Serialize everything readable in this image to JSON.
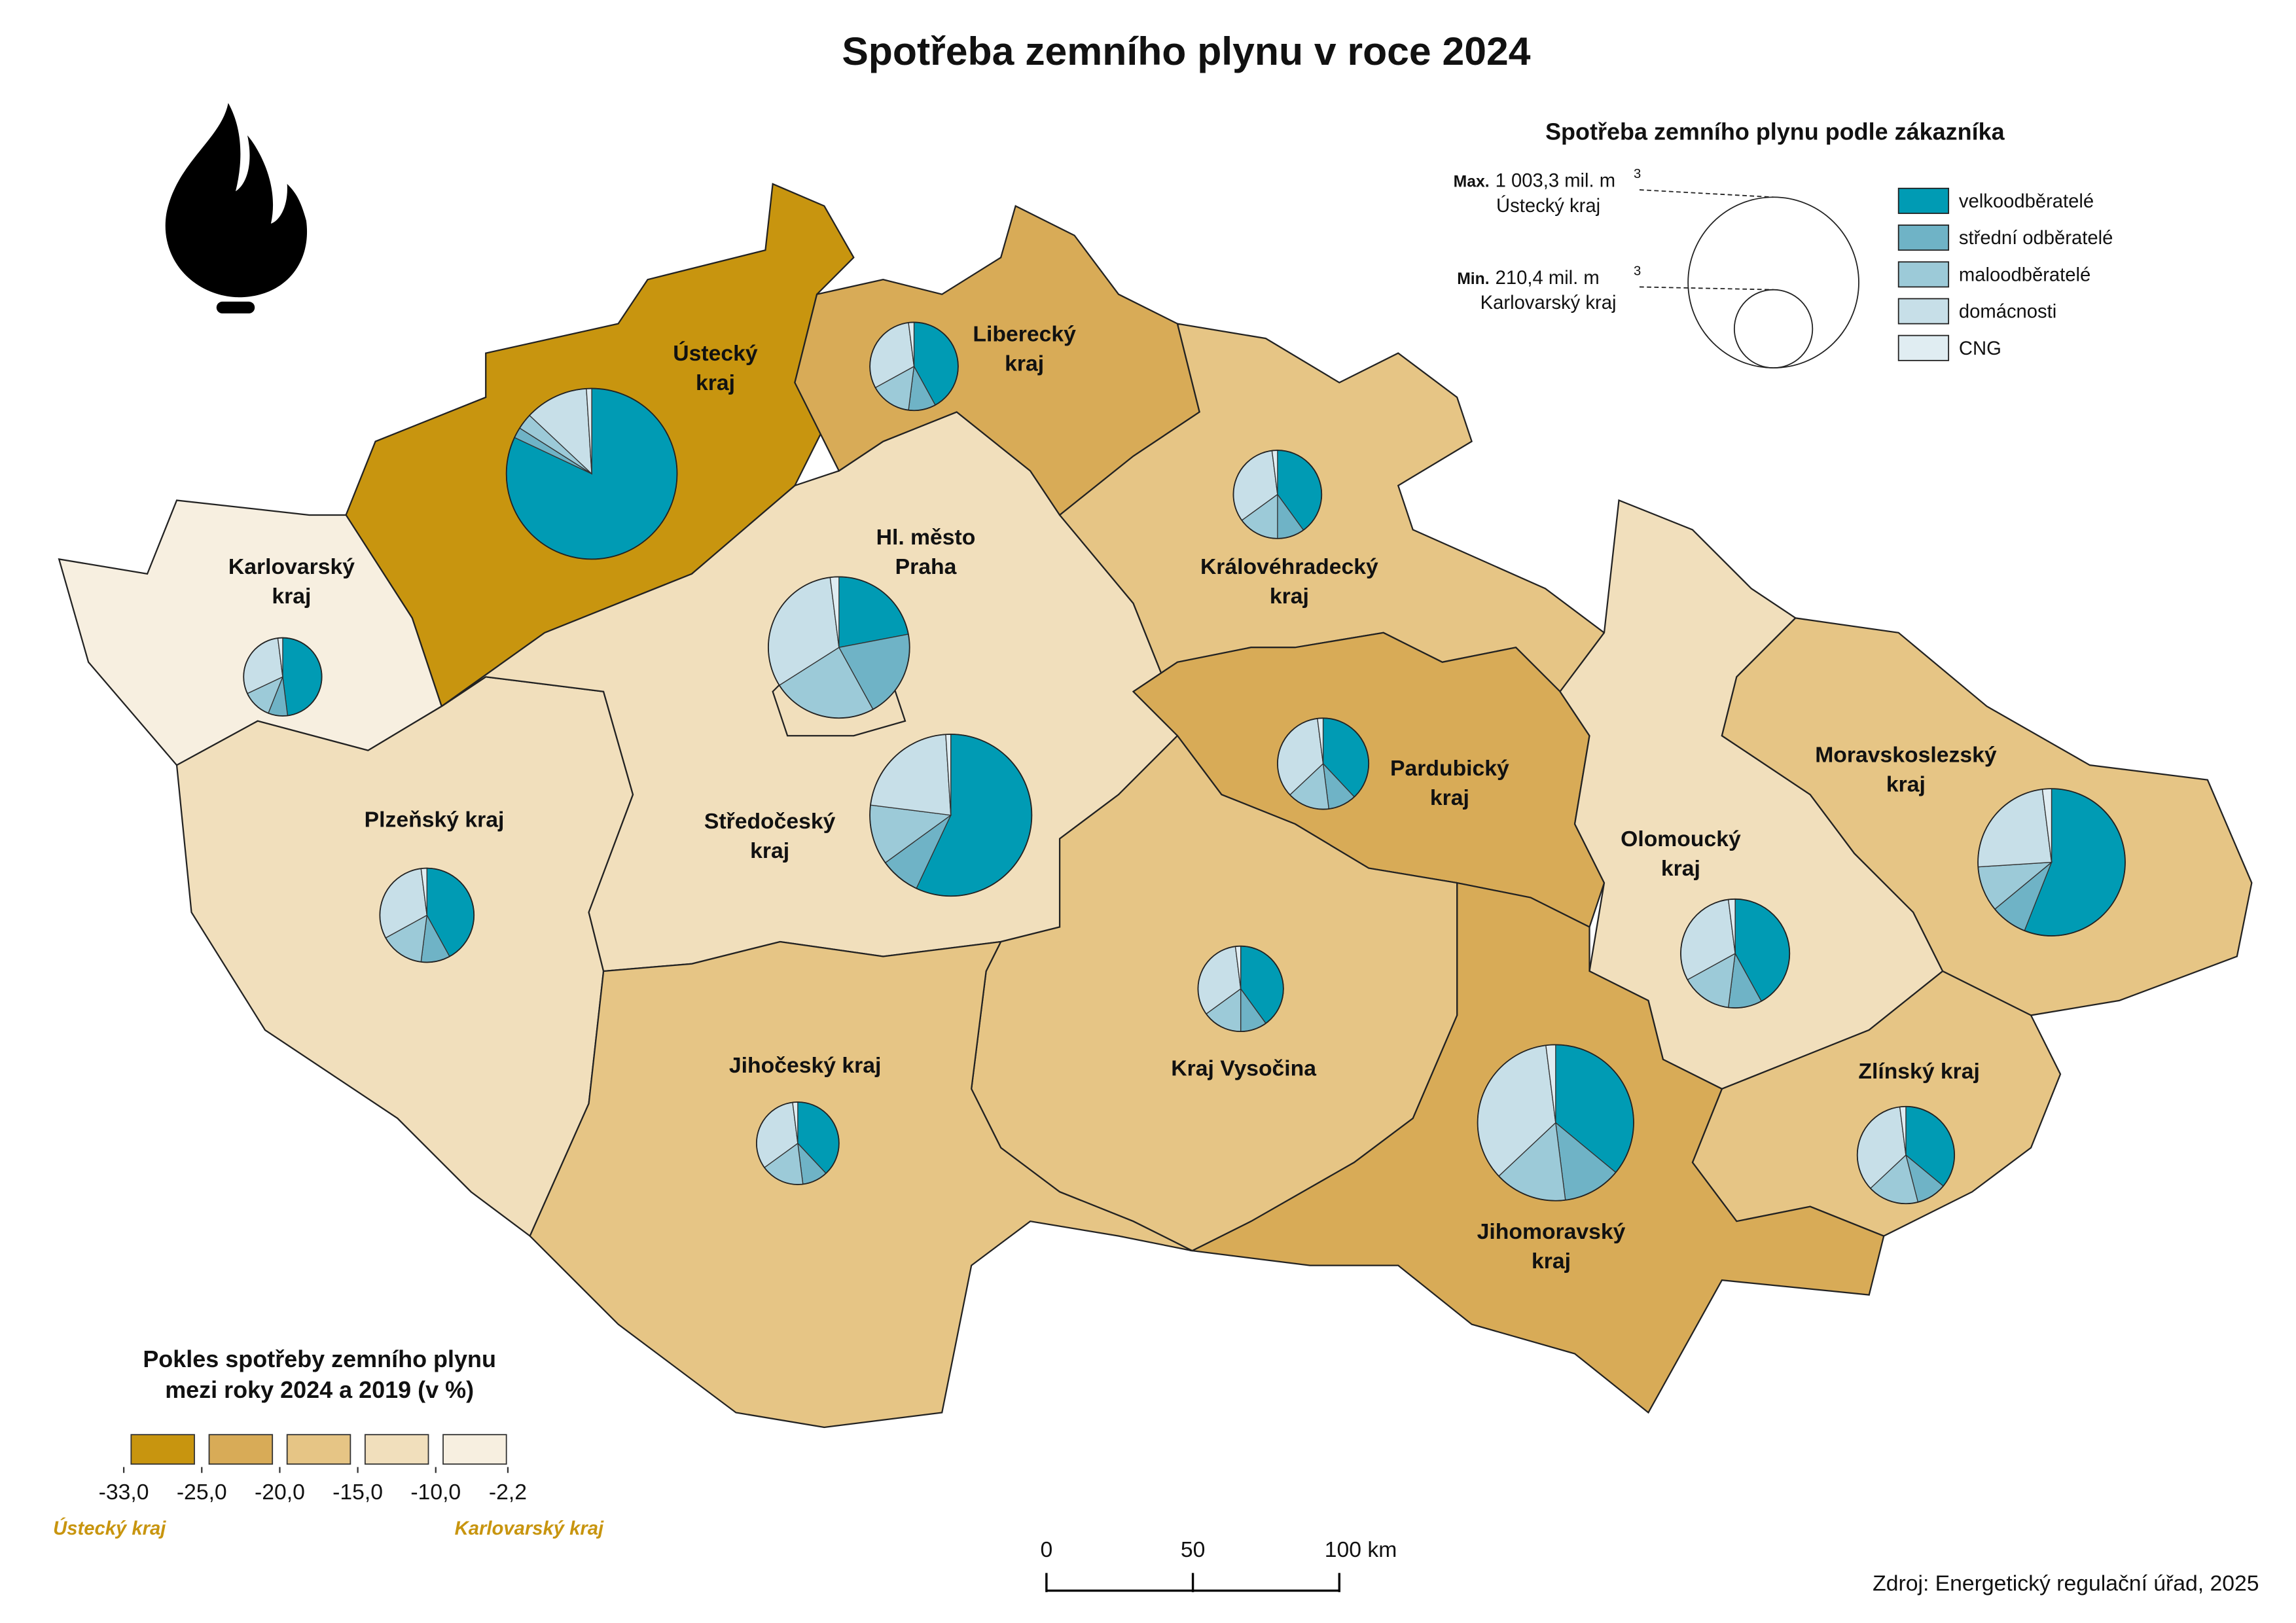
{
  "title": "Spotřeba zemního plynu v roce 2024",
  "pie_legend": {
    "title": "Spotřeba zemního plynu podle zákazníka",
    "max": {
      "prefix": "Max.",
      "value": 1003.3,
      "label": "1 003,3 mil. m",
      "sup": "3",
      "region": "Ústecký kraj"
    },
    "min": {
      "prefix": "Min.",
      "value": 210.4,
      "label": "210,4 mil. m",
      "sup": "3",
      "region": "Karlovarský kraj"
    },
    "categories": [
      {
        "name": "velkoodběratelé",
        "color": "#009bb4"
      },
      {
        "name": "střední odběratelé",
        "color": "#6fb3c6"
      },
      {
        "name": "maloodběratelé",
        "color": "#9ccad8"
      },
      {
        "name": "domácnosti",
        "color": "#c7dfe8"
      },
      {
        "name": "CNG",
        "color": "#e0edf2"
      }
    ]
  },
  "choropleth_legend": {
    "title": [
      "Pokles spotřeby zemního plynu",
      "mezi roky 2024 a 2019 (v %)"
    ],
    "colors": [
      "#c8950f",
      "#d8ab57",
      "#e6c585",
      "#f1dfbc",
      "#f7efe0"
    ],
    "breaks": [
      {
        "value": -33.0,
        "label": "-33,0"
      },
      {
        "value": -25.0,
        "label": "-25,0"
      },
      {
        "value": -20.0,
        "label": "-20,0"
      },
      {
        "value": -15.0,
        "label": "-15,0"
      },
      {
        "value": -10.0,
        "label": "-10,0"
      },
      {
        "value": -2.2,
        "label": "-2,2"
      }
    ],
    "low_label": "Ústecký kraj",
    "high_label": "Karlovarský kraj"
  },
  "regions": [
    {
      "label": [
        "Ústecký",
        "kraj"
      ],
      "class": 0,
      "total": 1003.3,
      "shares": [
        82,
        2,
        3,
        12,
        1
      ]
    },
    {
      "label": [
        "Karlovarský",
        "kraj"
      ],
      "class": 4,
      "total": 210.4,
      "shares": [
        48,
        8,
        12,
        30,
        2
      ]
    },
    {
      "label": [
        "Plzeňský kraj"
      ],
      "class": 3,
      "total": 305,
      "shares": [
        42,
        10,
        15,
        31,
        2
      ]
    },
    {
      "label": [
        "Středočeský",
        "kraj"
      ],
      "class": 3,
      "total": 902,
      "shares": [
        57,
        8,
        12,
        22,
        1
      ]
    },
    {
      "label": [
        "Hl. město",
        "Praha"
      ],
      "class": 3,
      "total": 687,
      "shares": [
        22,
        20,
        24,
        32,
        2
      ]
    },
    {
      "label": [
        "Liberecký",
        "kraj"
      ],
      "class": 1,
      "total": 268,
      "shares": [
        42,
        10,
        15,
        31,
        2
      ]
    },
    {
      "label": [
        "Královéhradecký",
        "kraj"
      ],
      "class": 2,
      "total": 268,
      "shares": [
        40,
        10,
        15,
        33,
        2
      ]
    },
    {
      "label": [
        "Pardubický",
        "kraj"
      ],
      "class": 1,
      "total": 286,
      "shares": [
        38,
        10,
        15,
        35,
        2
      ]
    },
    {
      "label": [
        "Olomoucký",
        "kraj"
      ],
      "class": 3,
      "total": 408,
      "shares": [
        42,
        10,
        15,
        31,
        2
      ]
    },
    {
      "label": [
        "Moravskoslezský",
        "kraj"
      ],
      "class": 2,
      "total": 746,
      "shares": [
        56,
        8,
        10,
        24,
        2
      ]
    },
    {
      "label": [
        "Zlínský kraj"
      ],
      "class": 2,
      "total": 325,
      "shares": [
        36,
        10,
        17,
        35,
        2
      ]
    },
    {
      "label": [
        "Jihomoravský",
        "kraj"
      ],
      "class": 1,
      "total": 838,
      "shares": [
        36,
        12,
        15,
        35,
        2
      ]
    },
    {
      "label": [
        "Kraj Vysočina"
      ],
      "class": 2,
      "total": 251,
      "shares": [
        40,
        10,
        15,
        33,
        2
      ]
    },
    {
      "label": [
        "Jihočeský kraj"
      ],
      "class": 2,
      "total": 234,
      "shares": [
        38,
        10,
        17,
        33,
        2
      ]
    }
  ],
  "scale_bar": {
    "ticks": [
      0,
      50,
      {
        "value": 100,
        "label": "100 km"
      }
    ]
  },
  "source": "Zdroj: Energetický regulační úřad, 2025"
}
